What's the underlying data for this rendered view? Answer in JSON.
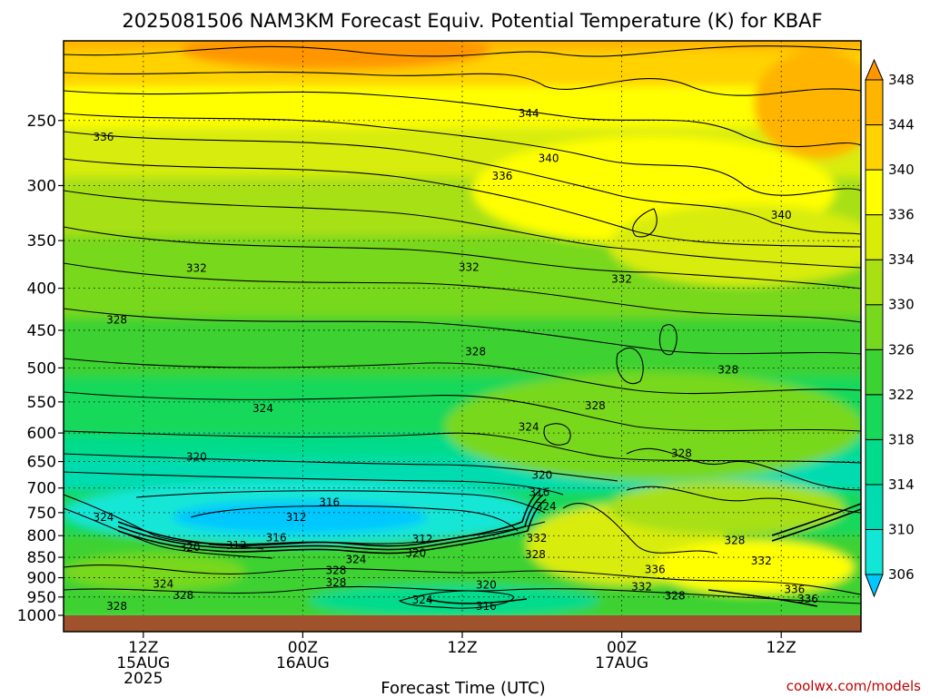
{
  "chart_data": {
    "type": "heatmap",
    "title": "2025081506 NAM3KM Forecast Equiv. Potential Temperature (K) for KBAF",
    "xlabel": "Forecast Time (UTC)",
    "credit": "coolwx.com/models",
    "y_axis": {
      "scale": "log-pressure",
      "range": [
        1000,
        200
      ],
      "ticks": [
        250,
        300,
        350,
        400,
        450,
        500,
        550,
        600,
        650,
        700,
        750,
        800,
        850,
        900,
        950,
        1000
      ]
    },
    "x_axis": {
      "range_hours": [
        0,
        60
      ],
      "ticks": [
        {
          "hour": 6,
          "line1": "12Z",
          "line2": "15AUG",
          "line3": "2025"
        },
        {
          "hour": 18,
          "line1": "00Z",
          "line2": "16AUG",
          "line3": ""
        },
        {
          "hour": 30,
          "line1": "12Z",
          "line2": "",
          "line3": ""
        },
        {
          "hour": 42,
          "line1": "00Z",
          "line2": "17AUG",
          "line3": ""
        },
        {
          "hour": 54,
          "line1": "12Z",
          "line2": "",
          "line3": ""
        }
      ]
    },
    "colorbar": {
      "levels": [
        306,
        310,
        314,
        318,
        322,
        326,
        330,
        334,
        336,
        340,
        344,
        348
      ],
      "colors": [
        "#00c8ff",
        "#12e6d6",
        "#00dcb0",
        "#00dc8c",
        "#18d85a",
        "#3cd232",
        "#78d81e",
        "#a8e014",
        "#d8ec08",
        "#ffff00",
        "#ffd200",
        "#ffb400",
        "#ff9600"
      ]
    },
    "contour_labels": [
      {
        "text": "336",
        "hour": 3,
        "p": 262
      },
      {
        "text": "344",
        "hour": 35,
        "p": 245
      },
      {
        "text": "340",
        "hour": 36.5,
        "p": 278
      },
      {
        "text": "336",
        "hour": 33,
        "p": 292
      },
      {
        "text": "340",
        "hour": 54,
        "p": 326
      },
      {
        "text": "332",
        "hour": 10,
        "p": 378
      },
      {
        "text": "332",
        "hour": 30.5,
        "p": 377
      },
      {
        "text": "332",
        "hour": 42,
        "p": 390
      },
      {
        "text": "328",
        "hour": 4,
        "p": 437
      },
      {
        "text": "328",
        "hour": 31,
        "p": 478
      },
      {
        "text": "328",
        "hour": 50,
        "p": 503
      },
      {
        "text": "328",
        "hour": 40,
        "p": 556
      },
      {
        "text": "324",
        "hour": 15,
        "p": 560
      },
      {
        "text": "324",
        "hour": 35,
        "p": 590
      },
      {
        "text": "328",
        "hour": 46.5,
        "p": 635
      },
      {
        "text": "320",
        "hour": 10,
        "p": 642
      },
      {
        "text": "320",
        "hour": 36,
        "p": 675
      },
      {
        "text": "316",
        "hour": 35.8,
        "p": 709
      },
      {
        "text": "316",
        "hour": 20,
        "p": 729
      },
      {
        "text": "312",
        "hour": 17.5,
        "p": 760
      },
      {
        "text": "324",
        "hour": 3,
        "p": 760
      },
      {
        "text": "324",
        "hour": 36.3,
        "p": 737
      },
      {
        "text": "332",
        "hour": 35.6,
        "p": 806
      },
      {
        "text": "316",
        "hour": 16,
        "p": 805
      },
      {
        "text": "312",
        "hour": 27,
        "p": 808
      },
      {
        "text": "320",
        "hour": 9.5,
        "p": 826
      },
      {
        "text": "312",
        "hour": 13,
        "p": 822
      },
      {
        "text": "328",
        "hour": 50.5,
        "p": 811
      },
      {
        "text": "320",
        "hour": 26.5,
        "p": 840
      },
      {
        "text": "324",
        "hour": 22,
        "p": 855
      },
      {
        "text": "328",
        "hour": 35.5,
        "p": 843
      },
      {
        "text": "332",
        "hour": 52.5,
        "p": 859
      },
      {
        "text": "336",
        "hour": 44.5,
        "p": 880
      },
      {
        "text": "328",
        "hour": 20.5,
        "p": 882
      },
      {
        "text": "324",
        "hour": 7.5,
        "p": 916
      },
      {
        "text": "328",
        "hour": 20.5,
        "p": 913
      },
      {
        "text": "320",
        "hour": 31.8,
        "p": 918
      },
      {
        "text": "332",
        "hour": 43.5,
        "p": 923
      },
      {
        "text": "328",
        "hour": 9,
        "p": 945
      },
      {
        "text": "336",
        "hour": 55,
        "p": 930
      },
      {
        "text": "328",
        "hour": 46,
        "p": 947
      },
      {
        "text": "324",
        "hour": 27,
        "p": 958
      },
      {
        "text": "336",
        "hour": 56,
        "p": 955
      },
      {
        "text": "316",
        "hour": 31.8,
        "p": 975
      },
      {
        "text": "328",
        "hour": 4,
        "p": 975
      }
    ]
  }
}
